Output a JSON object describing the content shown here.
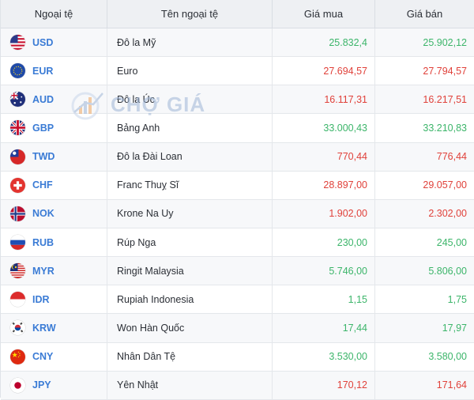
{
  "header": {
    "col_code": "Ngoại tệ",
    "col_name": "Tên ngoại tệ",
    "col_buy": "Giá mua",
    "col_sell": "Giá bán"
  },
  "watermark": {
    "text": "CHỢ GIÁ"
  },
  "colors": {
    "up": "#3cb56a",
    "down": "#e0413a",
    "code": "#3a7bd5"
  },
  "rows": [
    {
      "code": "USD",
      "flag": "us-flag-icon",
      "name": "Đô la Mỹ",
      "buy": "25.832,4",
      "sell": "25.902,12",
      "trend": "up"
    },
    {
      "code": "EUR",
      "flag": "eu-flag-icon",
      "name": "Euro",
      "buy": "27.694,57",
      "sell": "27.794,57",
      "trend": "down"
    },
    {
      "code": "AUD",
      "flag": "au-flag-icon",
      "name": "Đô la Úc",
      "buy": "16.117,31",
      "sell": "16.217,51",
      "trend": "down"
    },
    {
      "code": "GBP",
      "flag": "gb-flag-icon",
      "name": "Bảng Anh",
      "buy": "33.000,43",
      "sell": "33.210,83",
      "trend": "up"
    },
    {
      "code": "TWD",
      "flag": "tw-flag-icon",
      "name": "Đô la Đài Loan",
      "buy": "770,44",
      "sell": "776,44",
      "trend": "down"
    },
    {
      "code": "CHF",
      "flag": "ch-flag-icon",
      "name": "Franc Thuỵ Sĩ",
      "buy": "28.897,00",
      "sell": "29.057,00",
      "trend": "down"
    },
    {
      "code": "NOK",
      "flag": "no-flag-icon",
      "name": "Krone Na Uy",
      "buy": "1.902,00",
      "sell": "2.302,00",
      "trend": "down"
    },
    {
      "code": "RUB",
      "flag": "ru-flag-icon",
      "name": "Rúp Nga",
      "buy": "230,00",
      "sell": "245,00",
      "trend": "up"
    },
    {
      "code": "MYR",
      "flag": "my-flag-icon",
      "name": "Ringit Malaysia",
      "buy": "5.746,00",
      "sell": "5.806,00",
      "trend": "up"
    },
    {
      "code": "IDR",
      "flag": "id-flag-icon",
      "name": "Rupiah Indonesia",
      "buy": "1,15",
      "sell": "1,75",
      "trend": "up"
    },
    {
      "code": "KRW",
      "flag": "kr-flag-icon",
      "name": "Won Hàn Quốc",
      "buy": "17,44",
      "sell": "17,97",
      "trend": "up"
    },
    {
      "code": "CNY",
      "flag": "cn-flag-icon",
      "name": "Nhân Dân Tệ",
      "buy": "3.530,00",
      "sell": "3.580,00",
      "trend": "up"
    },
    {
      "code": "JPY",
      "flag": "jp-flag-icon",
      "name": "Yên Nhật",
      "buy": "170,12",
      "sell": "171,64",
      "trend": "down"
    }
  ]
}
